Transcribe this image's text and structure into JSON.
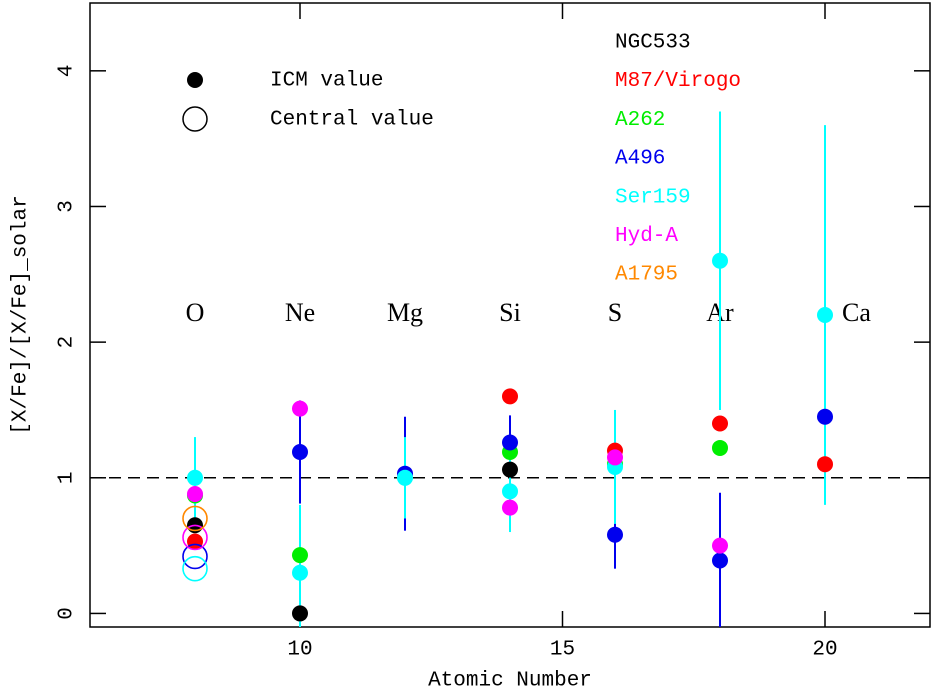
{
  "chart_data": {
    "type": "scatter",
    "x_label": "Atomic Number",
    "y_label": "[X/Fe]/[X/Fe]_solar",
    "xlim": [
      6,
      22
    ],
    "ylim": [
      -0.1,
      4.5
    ],
    "xticks": [
      10,
      15,
      20
    ],
    "yticks": [
      0,
      1,
      2,
      3,
      4
    ],
    "hline": 1,
    "marker_legend": [
      {
        "label": "ICM value",
        "marker": "filled"
      },
      {
        "label": "Central value",
        "marker": "open"
      }
    ],
    "annotations": [
      {
        "text": "O",
        "x": 8,
        "y": 2.2
      },
      {
        "text": "Ne",
        "x": 10,
        "y": 2.2
      },
      {
        "text": "Mg",
        "x": 12,
        "y": 2.2
      },
      {
        "text": "Si",
        "x": 14,
        "y": 2.2
      },
      {
        "text": "S",
        "x": 16,
        "y": 2.2
      },
      {
        "text": "Ar",
        "x": 18,
        "y": 2.2
      },
      {
        "text": "Ca",
        "x": 20.6,
        "y": 2.2
      }
    ],
    "series": [
      {
        "name": "NGC533",
        "color": "#000000",
        "x": [
          8,
          10,
          14
        ],
        "values": [
          0.65,
          0.0,
          1.06
        ],
        "errors": [
          null,
          null,
          null
        ],
        "markers": [
          "filled",
          "filled",
          "filled"
        ]
      },
      {
        "name": "M87/Virogo",
        "color": "#ff0000",
        "x": [
          8,
          14,
          16,
          18,
          20
        ],
        "values": [
          0.53,
          1.6,
          1.2,
          1.4,
          1.1
        ],
        "errors": [
          null,
          null,
          null,
          null,
          null
        ],
        "markers": [
          "filled",
          "filled",
          "filled",
          "filled",
          "filled"
        ]
      },
      {
        "name": "A262",
        "color": "#00ee00",
        "x": [
          8,
          10,
          14,
          16,
          18
        ],
        "values": [
          0.87,
          0.43,
          1.19,
          1.1,
          1.22
        ],
        "errors": [
          null,
          null,
          null,
          null,
          null
        ],
        "markers": [
          "filled",
          "filled",
          "filled",
          "filled",
          "filled"
        ]
      },
      {
        "name": "A496",
        "color": "#0000ee",
        "x": [
          8,
          10,
          12,
          14,
          16,
          18,
          20
        ],
        "values": [
          0.42,
          1.19,
          1.03,
          1.26,
          0.58,
          0.39,
          1.45
        ],
        "errors": [
          null,
          0.38,
          0.42,
          0.2,
          0.25,
          0.5,
          null
        ],
        "markers": [
          "open",
          "filled",
          "filled",
          "filled",
          "filled",
          "filled",
          "filled"
        ]
      },
      {
        "name": "Ser159",
        "color": "#00ffff",
        "x": [
          8,
          8,
          10,
          12,
          14,
          16,
          18,
          20
        ],
        "values": [
          0.33,
          1.0,
          0.3,
          1.0,
          0.9,
          1.08,
          2.6,
          2.2
        ],
        "errors": [
          null,
          0.3,
          0.5,
          0.3,
          0.3,
          0.42,
          1.1,
          1.4
        ],
        "markers": [
          "open",
          "filled",
          "filled",
          "filled",
          "filled",
          "filled",
          "filled",
          "filled"
        ]
      },
      {
        "name": "Hyd-A",
        "color": "#ff00ff",
        "x": [
          8,
          8,
          10,
          14,
          16,
          18
        ],
        "values": [
          0.56,
          0.88,
          1.51,
          0.78,
          1.15,
          0.5
        ],
        "errors": [
          null,
          null,
          null,
          null,
          null,
          null
        ],
        "markers": [
          "open",
          "filled",
          "filled",
          "filled",
          "filled",
          "filled"
        ]
      },
      {
        "name": "A1795",
        "color": "#ff8800",
        "x": [
          8
        ],
        "values": [
          0.7
        ],
        "errors": [
          null
        ],
        "markers": [
          "open"
        ]
      }
    ]
  }
}
